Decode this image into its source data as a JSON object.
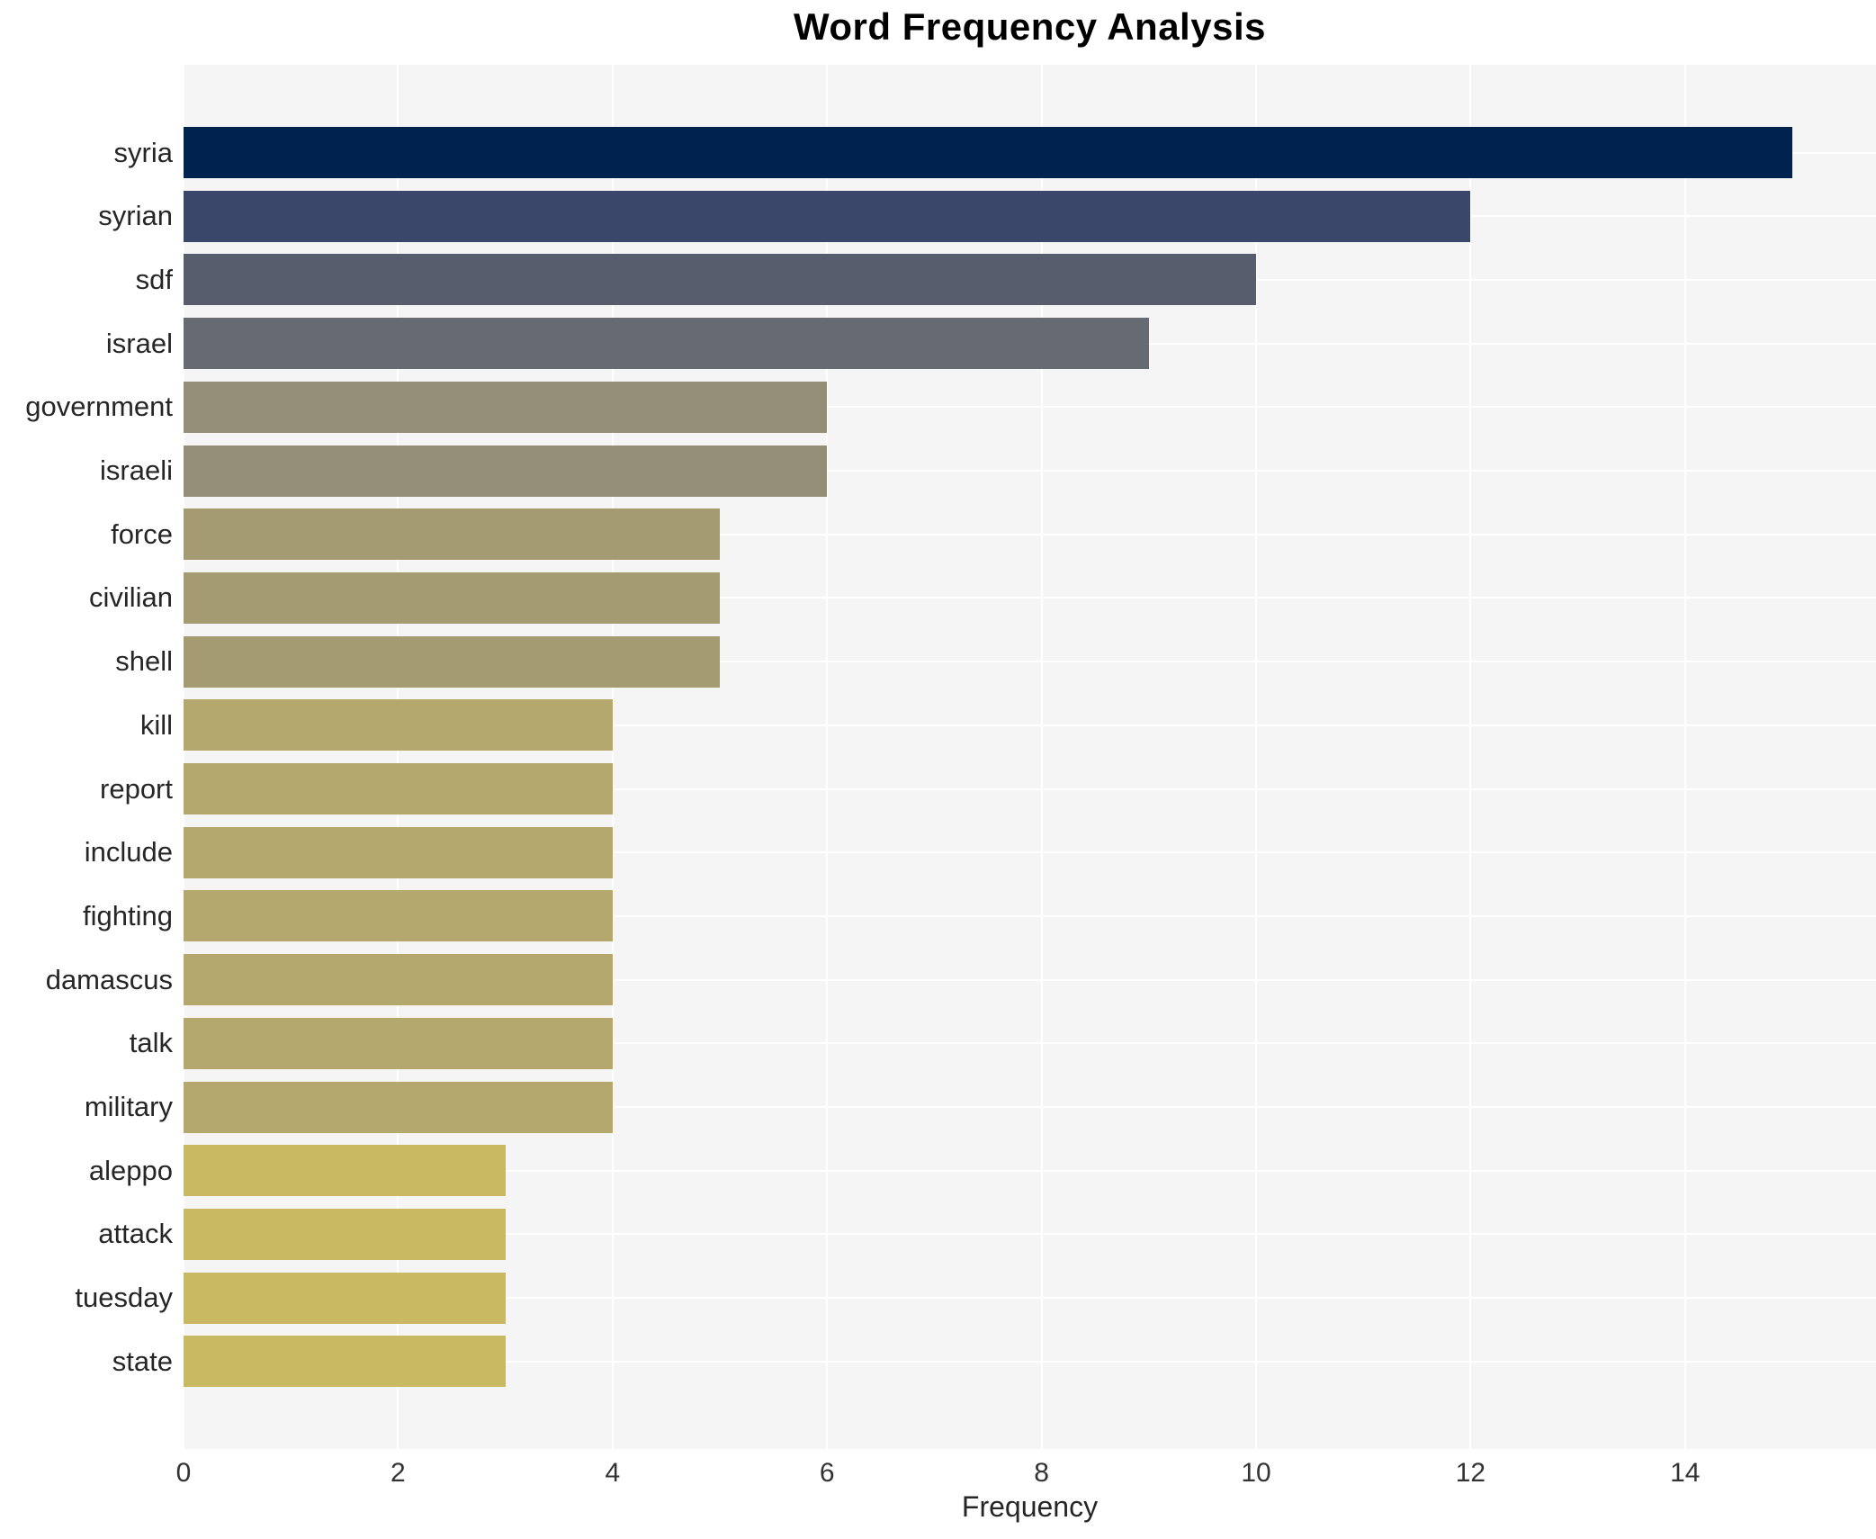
{
  "title": "Word Frequency Analysis",
  "xlabel": "Frequency",
  "chart_data": {
    "type": "bar",
    "orientation": "horizontal",
    "title": "Word Frequency Analysis",
    "xlabel": "Frequency",
    "ylabel": "",
    "categories": [
      "syria",
      "syrian",
      "sdf",
      "israel",
      "government",
      "israeli",
      "force",
      "civilian",
      "shell",
      "kill",
      "report",
      "include",
      "fighting",
      "damascus",
      "talk",
      "military",
      "aleppo",
      "attack",
      "tuesday",
      "state"
    ],
    "values": [
      15,
      12,
      10,
      9,
      6,
      6,
      5,
      5,
      5,
      4,
      4,
      4,
      4,
      4,
      4,
      4,
      3,
      3,
      3,
      3
    ],
    "bar_colors": [
      "#00224e",
      "#3a476b",
      "#575d6d",
      "#666a73",
      "#948e76",
      "#948e76",
      "#a49b72",
      "#a49b72",
      "#a49b72",
      "#b4a86e",
      "#b4a86e",
      "#b4a86e",
      "#b4a86e",
      "#b4a86e",
      "#b4a86e",
      "#b4a86e",
      "#c9b962",
      "#c9b962",
      "#c9b962",
      "#c9b962"
    ],
    "xlim": [
      0,
      15.78
    ],
    "xticks": [
      0,
      2,
      4,
      6,
      8,
      10,
      12,
      14
    ],
    "grid": true,
    "legend": false,
    "plot_bg_color": "#f5f5f6",
    "grid_color": "#ffffff",
    "colormap": "cividis"
  }
}
